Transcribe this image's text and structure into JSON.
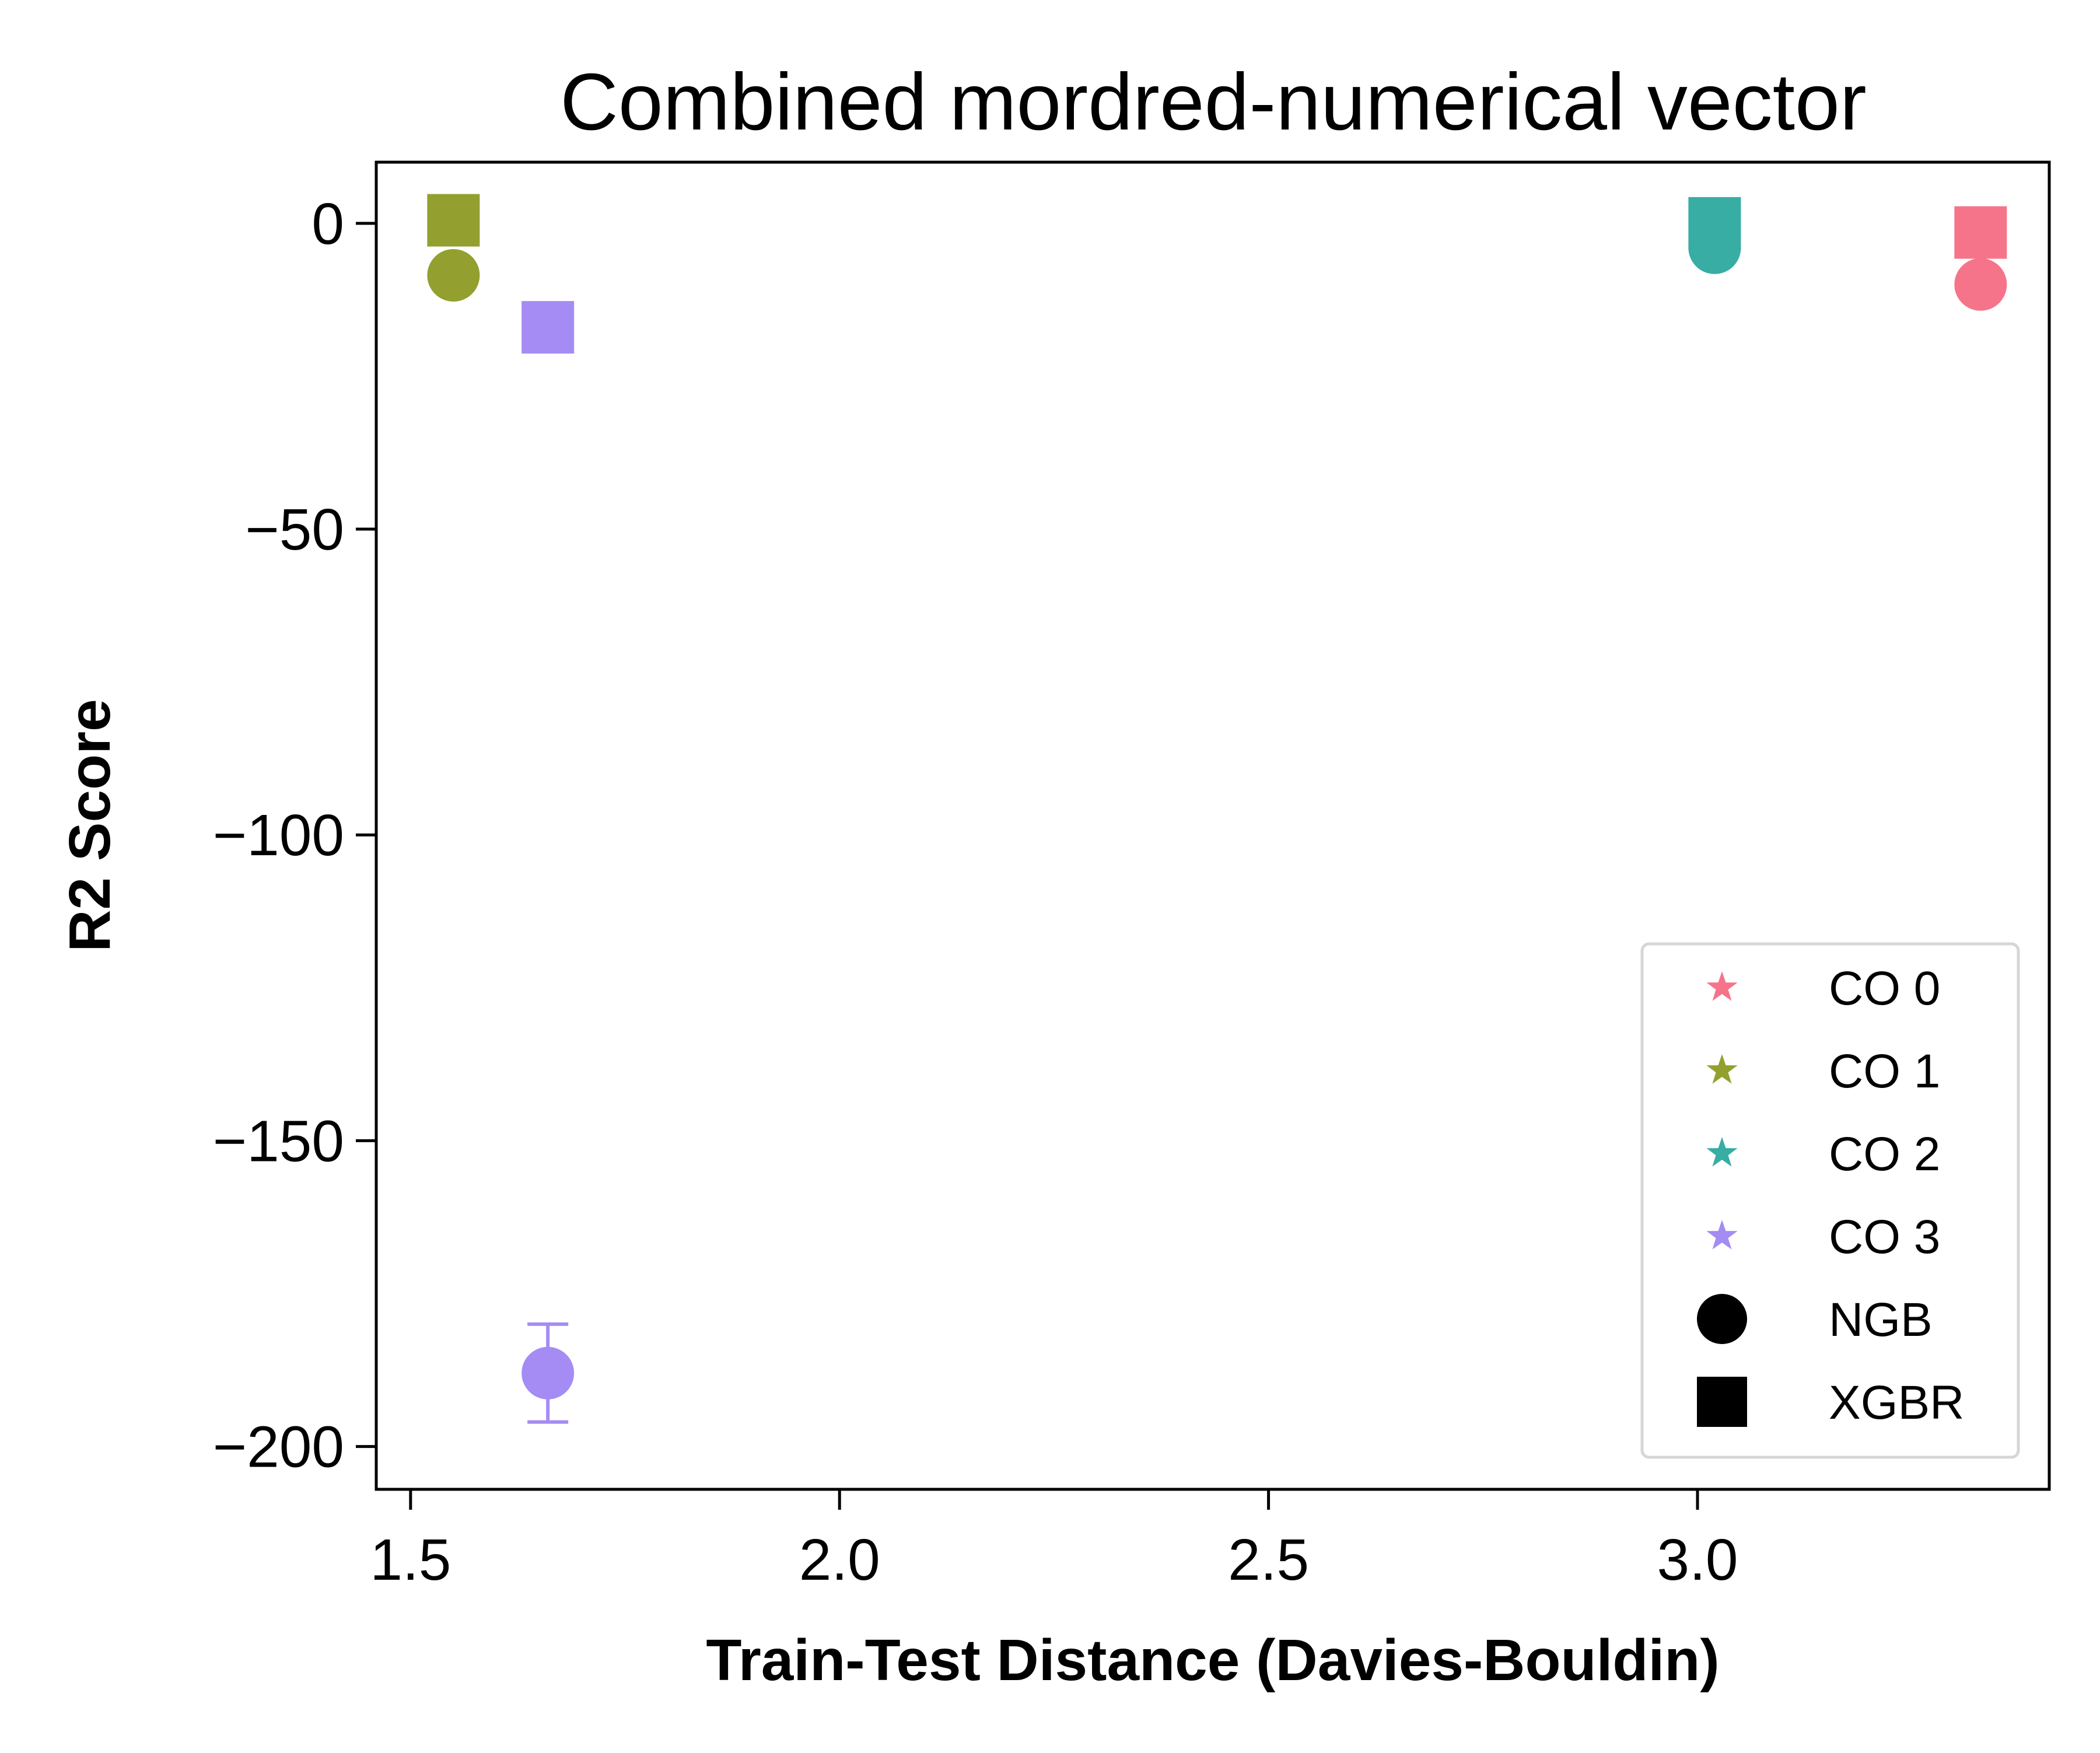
{
  "chart_data": {
    "type": "scatter",
    "title": "Combined mordred-numerical vector",
    "xlabel": "Train-Test Distance (Davies-Bouldin)",
    "ylabel": "R2 Score",
    "xlim": [
      1.46,
      3.41
    ],
    "ylim": [
      -207,
      10
    ],
    "xticks": [
      1.5,
      2.0,
      2.5,
      3.0
    ],
    "xtick_labels": [
      "1.5",
      "2.0",
      "2.5",
      "3.0"
    ],
    "yticks": [
      0,
      -50,
      -100,
      -150,
      -200
    ],
    "ytick_labels": [
      "0",
      "−50",
      "−100",
      "−150",
      "−200"
    ],
    "grid": false,
    "legend_position": "lower right",
    "legend": [
      {
        "label": "CO 0",
        "marker": "star",
        "color": "#f6748a"
      },
      {
        "label": "CO 1",
        "marker": "star",
        "color": "#93a02f"
      },
      {
        "label": "CO 2",
        "marker": "star",
        "color": "#37ada4"
      },
      {
        "label": "CO 3",
        "marker": "star",
        "color": "#a48cf4"
      },
      {
        "label": "NGB",
        "marker": "circle",
        "color": "#000000"
      },
      {
        "label": "XGBR",
        "marker": "square",
        "color": "#000000"
      }
    ],
    "points": [
      {
        "cluster": "CO 0",
        "model": "NGB",
        "x": 3.33,
        "y": -10,
        "yerr": 0.5
      },
      {
        "cluster": "CO 0",
        "model": "XGBR",
        "x": 3.33,
        "y": -1.5,
        "yerr": 0.5
      },
      {
        "cluster": "CO 1",
        "model": "NGB",
        "x": 1.55,
        "y": -8.5,
        "yerr": 0.5
      },
      {
        "cluster": "CO 1",
        "model": "XGBR",
        "x": 1.55,
        "y": 0.5,
        "yerr": 0.5
      },
      {
        "cluster": "CO 2",
        "model": "NGB",
        "x": 3.02,
        "y": -4,
        "yerr": 0.5
      },
      {
        "cluster": "CO 2",
        "model": "XGBR",
        "x": 3.02,
        "y": 0,
        "yerr": 0.5
      },
      {
        "cluster": "CO 3",
        "model": "NGB",
        "x": 1.66,
        "y": -188,
        "yerr": 8
      },
      {
        "cluster": "CO 3",
        "model": "XGBR",
        "x": 1.66,
        "y": -17,
        "yerr": 0.5
      }
    ]
  }
}
